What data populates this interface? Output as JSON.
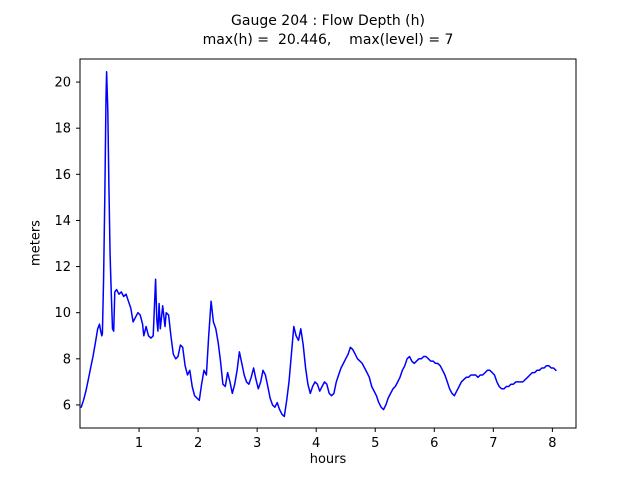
{
  "chart_data": {
    "type": "line",
    "title": "Gauge 204 : Flow Depth (h)",
    "subtitle": "max(h) =  20.446,    max(level) = 7",
    "xlabel": "hours",
    "ylabel": "meters",
    "xlim": [
      0,
      8.4
    ],
    "ylim": [
      5,
      21
    ],
    "xticks": [
      1,
      2,
      3,
      4,
      5,
      6,
      7,
      8
    ],
    "yticks": [
      6,
      8,
      10,
      12,
      14,
      16,
      18,
      20
    ],
    "grid": false,
    "legend": "none",
    "line_color": "#0000ff",
    "max_h": 20.446,
    "max_level": 7,
    "series_name": "Flow Depth (h)",
    "points": [
      [
        0.02,
        5.9
      ],
      [
        0.06,
        6.2
      ],
      [
        0.1,
        6.6
      ],
      [
        0.14,
        7.1
      ],
      [
        0.18,
        7.6
      ],
      [
        0.22,
        8.1
      ],
      [
        0.26,
        8.7
      ],
      [
        0.3,
        9.3
      ],
      [
        0.33,
        9.5
      ],
      [
        0.35,
        9.2
      ],
      [
        0.37,
        9.0
      ],
      [
        0.38,
        9.1
      ],
      [
        0.4,
        11.5
      ],
      [
        0.42,
        15.0
      ],
      [
        0.44,
        19.3
      ],
      [
        0.45,
        20.446
      ],
      [
        0.47,
        18.8
      ],
      [
        0.49,
        15.5
      ],
      [
        0.51,
        12.5
      ],
      [
        0.53,
        10.8
      ],
      [
        0.55,
        9.3
      ],
      [
        0.57,
        9.2
      ],
      [
        0.59,
        10.9
      ],
      [
        0.62,
        11.0
      ],
      [
        0.66,
        10.8
      ],
      [
        0.7,
        10.9
      ],
      [
        0.74,
        10.7
      ],
      [
        0.78,
        10.8
      ],
      [
        0.82,
        10.5
      ],
      [
        0.86,
        10.2
      ],
      [
        0.9,
        9.6
      ],
      [
        0.94,
        9.8
      ],
      [
        0.98,
        10.0
      ],
      [
        1.02,
        9.9
      ],
      [
        1.06,
        9.5
      ],
      [
        1.08,
        9.0
      ],
      [
        1.12,
        9.4
      ],
      [
        1.16,
        9.0
      ],
      [
        1.2,
        8.9
      ],
      [
        1.24,
        9.0
      ],
      [
        1.28,
        11.45
      ],
      [
        1.3,
        9.7
      ],
      [
        1.32,
        9.2
      ],
      [
        1.34,
        10.4
      ],
      [
        1.36,
        9.3
      ],
      [
        1.4,
        10.3
      ],
      [
        1.44,
        9.4
      ],
      [
        1.46,
        10.0
      ],
      [
        1.5,
        9.9
      ],
      [
        1.54,
        9.0
      ],
      [
        1.58,
        8.2
      ],
      [
        1.62,
        8.0
      ],
      [
        1.66,
        8.1
      ],
      [
        1.7,
        8.6
      ],
      [
        1.74,
        8.5
      ],
      [
        1.78,
        7.7
      ],
      [
        1.82,
        7.3
      ],
      [
        1.86,
        7.5
      ],
      [
        1.9,
        6.8
      ],
      [
        1.94,
        6.4
      ],
      [
        1.98,
        6.3
      ],
      [
        2.02,
        6.2
      ],
      [
        2.06,
        6.9
      ],
      [
        2.1,
        7.5
      ],
      [
        2.14,
        7.3
      ],
      [
        2.18,
        9.0
      ],
      [
        2.22,
        10.5
      ],
      [
        2.26,
        9.6
      ],
      [
        2.3,
        9.3
      ],
      [
        2.34,
        8.7
      ],
      [
        2.38,
        7.9
      ],
      [
        2.42,
        6.9
      ],
      [
        2.46,
        6.8
      ],
      [
        2.5,
        7.4
      ],
      [
        2.54,
        7.0
      ],
      [
        2.58,
        6.5
      ],
      [
        2.62,
        6.9
      ],
      [
        2.66,
        7.5
      ],
      [
        2.7,
        8.3
      ],
      [
        2.74,
        7.8
      ],
      [
        2.78,
        7.3
      ],
      [
        2.82,
        7.0
      ],
      [
        2.86,
        6.9
      ],
      [
        2.9,
        7.2
      ],
      [
        2.94,
        7.6
      ],
      [
        2.98,
        7.1
      ],
      [
        3.02,
        6.7
      ],
      [
        3.06,
        7.0
      ],
      [
        3.1,
        7.5
      ],
      [
        3.14,
        7.3
      ],
      [
        3.18,
        6.8
      ],
      [
        3.22,
        6.3
      ],
      [
        3.26,
        6.0
      ],
      [
        3.3,
        5.9
      ],
      [
        3.34,
        6.1
      ],
      [
        3.38,
        5.8
      ],
      [
        3.42,
        5.6
      ],
      [
        3.46,
        5.5
      ],
      [
        3.5,
        6.2
      ],
      [
        3.54,
        7.0
      ],
      [
        3.58,
        8.2
      ],
      [
        3.62,
        9.4
      ],
      [
        3.66,
        9.0
      ],
      [
        3.7,
        8.8
      ],
      [
        3.74,
        9.3
      ],
      [
        3.78,
        8.6
      ],
      [
        3.82,
        7.6
      ],
      [
        3.86,
        6.9
      ],
      [
        3.9,
        6.5
      ],
      [
        3.94,
        6.8
      ],
      [
        3.98,
        7.0
      ],
      [
        4.02,
        6.9
      ],
      [
        4.06,
        6.6
      ],
      [
        4.1,
        6.8
      ],
      [
        4.14,
        7.0
      ],
      [
        4.18,
        6.9
      ],
      [
        4.22,
        6.5
      ],
      [
        4.26,
        6.4
      ],
      [
        4.3,
        6.5
      ],
      [
        4.34,
        7.0
      ],
      [
        4.38,
        7.3
      ],
      [
        4.42,
        7.6
      ],
      [
        4.46,
        7.8
      ],
      [
        4.5,
        8.0
      ],
      [
        4.54,
        8.2
      ],
      [
        4.58,
        8.5
      ],
      [
        4.62,
        8.4
      ],
      [
        4.66,
        8.2
      ],
      [
        4.7,
        8.0
      ],
      [
        4.74,
        7.9
      ],
      [
        4.78,
        7.8
      ],
      [
        4.82,
        7.6
      ],
      [
        4.86,
        7.4
      ],
      [
        4.9,
        7.2
      ],
      [
        4.94,
        6.8
      ],
      [
        4.98,
        6.6
      ],
      [
        5.02,
        6.4
      ],
      [
        5.06,
        6.1
      ],
      [
        5.1,
        5.9
      ],
      [
        5.14,
        5.8
      ],
      [
        5.18,
        6.0
      ],
      [
        5.22,
        6.3
      ],
      [
        5.26,
        6.5
      ],
      [
        5.3,
        6.7
      ],
      [
        5.34,
        6.8
      ],
      [
        5.38,
        7.0
      ],
      [
        5.42,
        7.2
      ],
      [
        5.46,
        7.5
      ],
      [
        5.5,
        7.7
      ],
      [
        5.54,
        8.0
      ],
      [
        5.58,
        8.1
      ],
      [
        5.62,
        7.9
      ],
      [
        5.66,
        7.8
      ],
      [
        5.7,
        7.9
      ],
      [
        5.74,
        8.0
      ],
      [
        5.78,
        8.0
      ],
      [
        5.82,
        8.1
      ],
      [
        5.86,
        8.1
      ],
      [
        5.9,
        8.0
      ],
      [
        5.94,
        7.9
      ],
      [
        5.98,
        7.9
      ],
      [
        6.02,
        7.8
      ],
      [
        6.06,
        7.8
      ],
      [
        6.1,
        7.7
      ],
      [
        6.14,
        7.5
      ],
      [
        6.18,
        7.3
      ],
      [
        6.22,
        7.0
      ],
      [
        6.26,
        6.7
      ],
      [
        6.3,
        6.5
      ],
      [
        6.34,
        6.4
      ],
      [
        6.38,
        6.6
      ],
      [
        6.42,
        6.8
      ],
      [
        6.46,
        7.0
      ],
      [
        6.5,
        7.1
      ],
      [
        6.54,
        7.2
      ],
      [
        6.58,
        7.2
      ],
      [
        6.62,
        7.3
      ],
      [
        6.66,
        7.3
      ],
      [
        6.7,
        7.3
      ],
      [
        6.74,
        7.2
      ],
      [
        6.78,
        7.3
      ],
      [
        6.82,
        7.3
      ],
      [
        6.86,
        7.4
      ],
      [
        6.9,
        7.5
      ],
      [
        6.94,
        7.5
      ],
      [
        6.98,
        7.4
      ],
      [
        7.02,
        7.3
      ],
      [
        7.06,
        7.0
      ],
      [
        7.1,
        6.8
      ],
      [
        7.14,
        6.7
      ],
      [
        7.18,
        6.7
      ],
      [
        7.22,
        6.8
      ],
      [
        7.26,
        6.8
      ],
      [
        7.3,
        6.9
      ],
      [
        7.34,
        6.9
      ],
      [
        7.38,
        7.0
      ],
      [
        7.42,
        7.0
      ],
      [
        7.46,
        7.0
      ],
      [
        7.5,
        7.0
      ],
      [
        7.54,
        7.1
      ],
      [
        7.58,
        7.2
      ],
      [
        7.62,
        7.3
      ],
      [
        7.66,
        7.4
      ],
      [
        7.7,
        7.4
      ],
      [
        7.74,
        7.5
      ],
      [
        7.78,
        7.5
      ],
      [
        7.82,
        7.6
      ],
      [
        7.86,
        7.6
      ],
      [
        7.9,
        7.7
      ],
      [
        7.94,
        7.7
      ],
      [
        7.98,
        7.6
      ],
      [
        8.02,
        7.6
      ],
      [
        8.06,
        7.5
      ]
    ]
  }
}
